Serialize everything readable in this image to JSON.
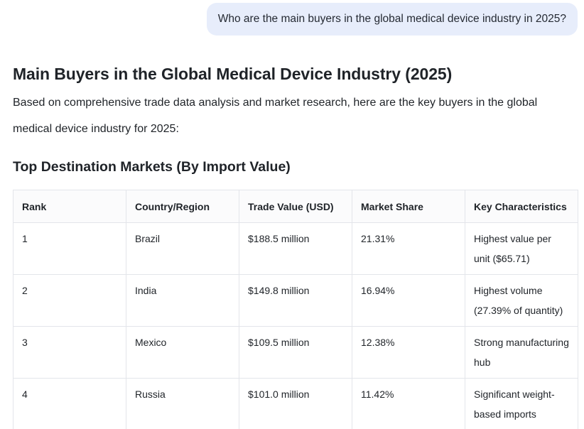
{
  "user_message": "Who are the main buyers in the global medical device industry in 2025?",
  "answer": {
    "title": "Main Buyers in the Global Medical Device Industry (2025)",
    "intro": "Based on comprehensive trade data analysis and market research, here are the key buyers in the global medical device industry for 2025:",
    "section_title": "Top Destination Markets (By Import Value)"
  },
  "table": {
    "headers": [
      "Rank",
      "Country/Region",
      "Trade Value (USD)",
      "Market Share",
      "Key Characteristics"
    ],
    "rows": [
      [
        "1",
        "Brazil",
        "$188.5 million",
        "21.31%",
        "Highest value per unit ($65.71)"
      ],
      [
        "2",
        "India",
        "$149.8 million",
        "16.94%",
        "Highest volume (27.39% of quantity)"
      ],
      [
        "3",
        "Mexico",
        "$109.5 million",
        "12.38%",
        "Strong manufacturing hub"
      ],
      [
        "4",
        "Russia",
        "$101.0 million",
        "11.42%",
        "Significant weight-based imports"
      ]
    ]
  }
}
